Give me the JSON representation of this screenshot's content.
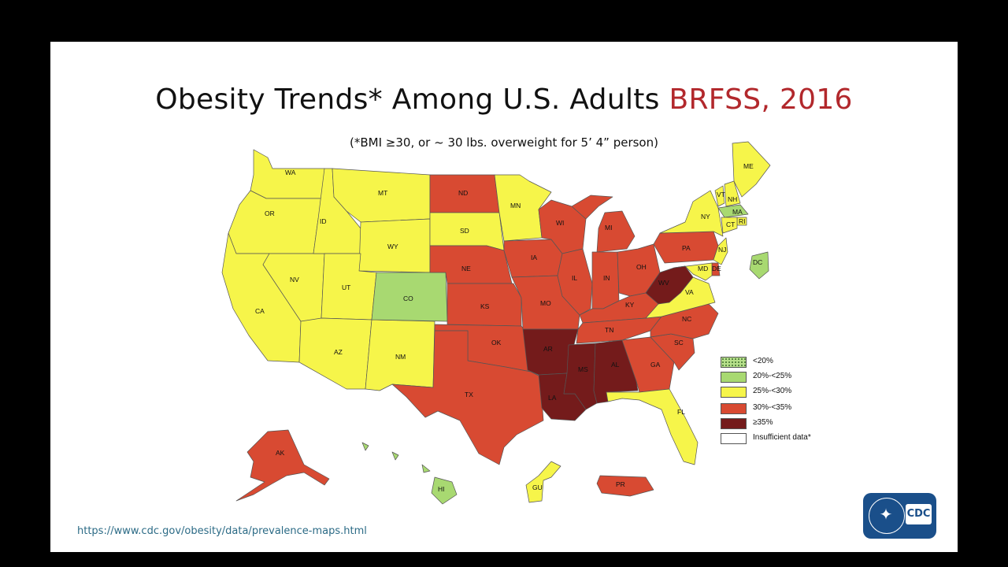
{
  "title": {
    "main": "Obesity Trends* Among U.S. Adults",
    "accent": "BRFSS, 2016"
  },
  "subtitle": "(*BMI ≥30, or ~ 30 lbs. overweight for 5’ 4” person)",
  "url": "https://www.cdc.gov/obesity/data/prevalence-maps.html",
  "logo": {
    "text": "CDC"
  },
  "colors": {
    "lt20": "#b7e08b",
    "c20_25": "#a8d971",
    "c25_30": "#f6f54a",
    "c30_35": "#d84a32",
    "ge35": "#741b1b",
    "insufficient": "#ffffff"
  },
  "legend": [
    {
      "key": "lt20",
      "label": "<20%"
    },
    {
      "key": "c20_25",
      "label": "20%-<25%"
    },
    {
      "key": "c25_30",
      "label": "25%-<30%"
    },
    {
      "key": "c30_35",
      "label": "30%-<35%"
    },
    {
      "key": "ge35",
      "label": "≥35%"
    },
    {
      "key": "insufficient",
      "label": "Insufficient data*"
    }
  ],
  "states": {
    "WA": "c25_30",
    "OR": "c25_30",
    "CA": "c25_30",
    "NV": "c25_30",
    "ID": "c25_30",
    "MT": "c25_30",
    "WY": "c25_30",
    "UT": "c25_30",
    "AZ": "c25_30",
    "NM": "c25_30",
    "CO": "c20_25",
    "ND": "c30_35",
    "SD": "c25_30",
    "NE": "c30_35",
    "KS": "c30_35",
    "OK": "c30_35",
    "TX": "c30_35",
    "MN": "c25_30",
    "IA": "c30_35",
    "MO": "c30_35",
    "AR": "ge35",
    "LA": "ge35",
    "WI": "c30_35",
    "IL": "c30_35",
    "MI": "c30_35",
    "IN": "c30_35",
    "OH": "c30_35",
    "KY": "c30_35",
    "TN": "c30_35",
    "MS": "ge35",
    "AL": "ge35",
    "GA": "c30_35",
    "FL": "c25_30",
    "SC": "c30_35",
    "NC": "c30_35",
    "VA": "c25_30",
    "WV": "ge35",
    "PA": "c30_35",
    "NY": "c25_30",
    "VT": "c25_30",
    "NH": "c25_30",
    "ME": "c25_30",
    "MA": "c20_25",
    "RI": "c25_30",
    "CT": "c25_30",
    "NJ": "c25_30",
    "DE": "c30_35",
    "MD": "c25_30",
    "DC": "c20_25",
    "AK": "c30_35",
    "HI": "c20_25",
    "GU": "c25_30",
    "PR": "c30_35"
  }
}
